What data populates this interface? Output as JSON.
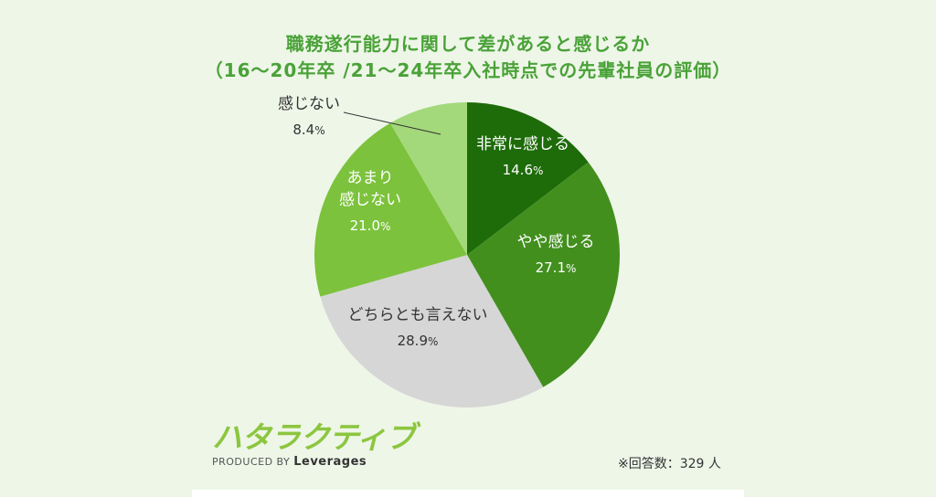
{
  "chart_data": {
    "type": "pie",
    "title_line1": "職務遂行能力に関して差があると感じるか",
    "title_line2": "（16～20年卒 /21～24年卒入社時点での先輩社員の評価）",
    "unit": "%",
    "slices": [
      {
        "label_lines": [
          "非常に感じる"
        ],
        "value": 14.6,
        "value_text": "14.6",
        "color": "#1e6b09",
        "text_color": "#ffffff"
      },
      {
        "label_lines": [
          "やや感じる"
        ],
        "value": 27.1,
        "value_text": "27.1",
        "color": "#428f1e",
        "text_color": "#ffffff"
      },
      {
        "label_lines": [
          "どちらとも言えない"
        ],
        "value": 28.9,
        "value_text": "28.9",
        "color": "#d6d6d6",
        "text_color": "#333333"
      },
      {
        "label_lines": [
          "あまり",
          "感じない"
        ],
        "value": 21.0,
        "value_text": "21.0",
        "color": "#7cc23c",
        "text_color": "#ffffff"
      },
      {
        "label_lines": [
          "感じない"
        ],
        "value": 8.4,
        "value_text": "8.4",
        "color": "#a3d97a",
        "text_color": "#333333"
      }
    ]
  },
  "footnote": "※回答数：329 人",
  "logo": {
    "mark": "ハタラクティブ",
    "produced_by": "PRODUCED BY",
    "company": "Leverages"
  }
}
